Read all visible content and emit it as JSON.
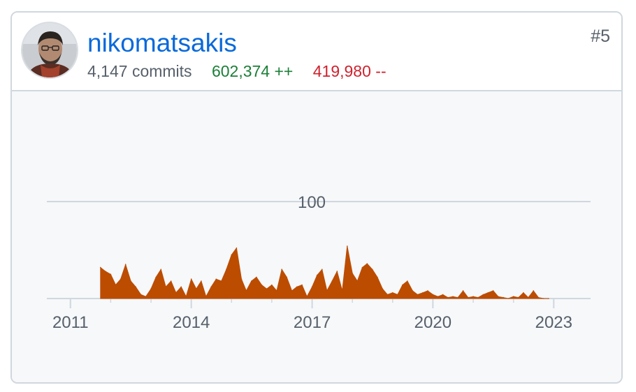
{
  "contributor": {
    "username": "nikomatsakis",
    "commits": "4,147 commits",
    "additions": "602,374 ++",
    "deletions": "419,980 --",
    "rank": "#5"
  },
  "colors": {
    "link": "#0969da",
    "additions": "#1a7f37",
    "deletions": "#cf222e",
    "area": "#bc4c00",
    "grid": "#d0d7de",
    "axis_text": "#57606a"
  },
  "chart_data": {
    "type": "area",
    "title": "",
    "xlabel": "",
    "ylabel": "",
    "y_tick_labels": [
      "100"
    ],
    "y_gridlines": [
      100
    ],
    "ylim": [
      0,
      100
    ],
    "xlim": [
      "2010-06-01",
      "2023-12-01"
    ],
    "x_tick_labels": [
      "2011",
      "2014",
      "2017",
      "2020",
      "2023"
    ],
    "grid": true,
    "legend": "none",
    "series": [
      {
        "values_note": "weekly commits",
        "x": [
          "2011-10-01",
          "2011-11-15",
          "2012-01-01",
          "2012-02-15",
          "2012-04-01",
          "2012-05-15",
          "2012-07-01",
          "2012-08-15",
          "2012-10-01",
          "2012-11-15",
          "2013-01-01",
          "2013-02-15",
          "2013-04-01",
          "2013-05-15",
          "2013-07-01",
          "2013-08-15",
          "2013-10-01",
          "2013-11-15",
          "2014-01-01",
          "2014-02-15",
          "2014-04-01",
          "2014-05-15",
          "2014-07-01",
          "2014-08-15",
          "2014-10-01",
          "2014-11-15",
          "2015-01-01",
          "2015-02-15",
          "2015-04-01",
          "2015-05-15",
          "2015-07-01",
          "2015-08-15",
          "2015-10-01",
          "2015-11-15",
          "2016-01-01",
          "2016-02-15",
          "2016-04-01",
          "2016-05-15",
          "2016-07-01",
          "2016-08-15",
          "2016-10-01",
          "2016-11-15",
          "2017-01-01",
          "2017-02-15",
          "2017-04-01",
          "2017-05-15",
          "2017-07-01",
          "2017-08-15",
          "2017-10-01",
          "2017-11-15",
          "2018-01-01",
          "2018-02-15",
          "2018-04-01",
          "2018-05-15",
          "2018-07-01",
          "2018-08-15",
          "2018-10-01",
          "2018-11-15",
          "2019-01-01",
          "2019-02-15",
          "2019-04-01",
          "2019-05-15",
          "2019-07-01",
          "2019-08-15",
          "2019-10-01",
          "2019-11-15",
          "2020-01-01",
          "2020-02-15",
          "2020-04-01",
          "2020-05-15",
          "2020-07-01",
          "2020-08-15",
          "2020-10-01",
          "2020-11-15",
          "2021-01-01",
          "2021-02-15",
          "2021-04-01",
          "2021-05-15",
          "2021-07-01",
          "2021-08-15",
          "2021-10-01",
          "2021-11-15",
          "2022-01-01",
          "2022-02-15",
          "2022-04-01",
          "2022-05-15",
          "2022-07-01",
          "2022-08-15",
          "2022-10-01",
          "2022-11-15"
        ],
        "y": [
          32,
          28,
          25,
          14,
          20,
          35,
          18,
          12,
          4,
          2,
          10,
          22,
          30,
          12,
          18,
          6,
          12,
          2,
          20,
          10,
          18,
          2,
          12,
          20,
          18,
          30,
          45,
          52,
          20,
          8,
          18,
          22,
          14,
          10,
          14,
          8,
          30,
          22,
          8,
          12,
          14,
          2,
          12,
          24,
          30,
          8,
          18,
          28,
          8,
          54,
          26,
          18,
          32,
          36,
          30,
          22,
          10,
          4,
          6,
          4,
          14,
          18,
          8,
          4,
          6,
          8,
          4,
          2,
          4,
          1,
          2,
          1,
          8,
          1,
          2,
          1,
          4,
          6,
          8,
          2,
          1,
          0,
          2,
          1,
          6,
          1,
          8,
          1,
          0,
          0
        ]
      }
    ]
  }
}
